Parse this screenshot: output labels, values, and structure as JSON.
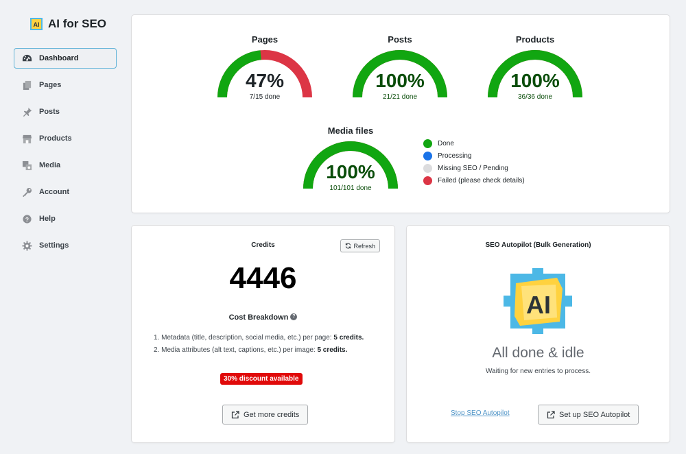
{
  "brand": {
    "name": "AI for SEO",
    "logo_text": "AI"
  },
  "nav": [
    {
      "label": "Dashboard",
      "icon": "dashboard-icon",
      "active": true
    },
    {
      "label": "Pages",
      "icon": "pages-icon",
      "active": false
    },
    {
      "label": "Posts",
      "icon": "pin-icon",
      "active": false
    },
    {
      "label": "Products",
      "icon": "store-icon",
      "active": false
    },
    {
      "label": "Media",
      "icon": "media-icon",
      "active": false
    },
    {
      "label": "Account",
      "icon": "key-icon",
      "active": false
    },
    {
      "label": "Help",
      "icon": "help-icon",
      "active": false
    },
    {
      "label": "Settings",
      "icon": "gear-icon",
      "active": false
    }
  ],
  "colors": {
    "done": "#11a611",
    "processing": "#1a73e8",
    "pending": "#dcdcde",
    "failed": "#dc3545",
    "done_text": "#0a4d0a"
  },
  "progress": {
    "pages": {
      "title": "Pages",
      "percent": "47%",
      "done_text": "7/15 done",
      "done_fraction": 0.47,
      "state": "partial"
    },
    "posts": {
      "title": "Posts",
      "percent": "100%",
      "done_text": "21/21 done",
      "done_fraction": 1.0,
      "state": "complete"
    },
    "products": {
      "title": "Products",
      "percent": "100%",
      "done_text": "36/36 done",
      "done_fraction": 1.0,
      "state": "complete"
    },
    "media": {
      "title": "Media files",
      "percent": "100%",
      "done_text": "101/101 done",
      "done_fraction": 1.0,
      "state": "complete"
    }
  },
  "legend": [
    {
      "label": "Done",
      "color": "#11a611"
    },
    {
      "label": "Processing",
      "color": "#1a73e8"
    },
    {
      "label": "Missing SEO / Pending",
      "color": "#dcdcde"
    },
    {
      "label": "Failed (please check details)",
      "color": "#dc3545"
    }
  ],
  "credits": {
    "heading": "Credits",
    "refresh_label": "Refresh",
    "value": "4446",
    "cost_title": "Cost Breakdown",
    "cost_items": [
      {
        "num": "1.",
        "text": "Metadata (title, description, social media, etc.) per page: ",
        "cost": "5 credits."
      },
      {
        "num": "2.",
        "text": "Media attributes (alt text, captions, etc.) per image: ",
        "cost": "5 credits."
      }
    ],
    "discount": "30% discount available",
    "button_label": "Get more credits"
  },
  "autopilot": {
    "heading": "SEO Autopilot (Bulk Generation)",
    "logo_text": "AI",
    "status_title": "All done & idle",
    "status_sub": "Waiting for new entries to process.",
    "stop_link": "Stop SEO Autopilot",
    "setup_label": "Set up SEO Autopilot"
  }
}
